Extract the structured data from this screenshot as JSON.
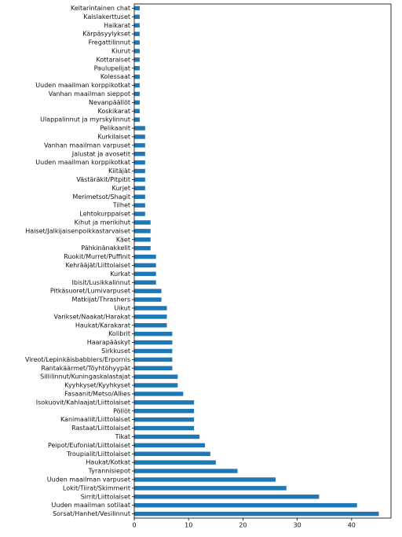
{
  "chart_data": {
    "type": "barh",
    "color": "#1f77b4",
    "categories": [
      "Keltarintainen chat",
      "Kaislakerttuset",
      "Haikarat",
      "Kärpäsyylykset",
      "Fregattilinnut",
      "Kiurut",
      "Kottaraiset",
      "Paulupelijat",
      "Kolessaat",
      "Uuden maailman korppikotkat",
      "Vanhan maailman sieppot",
      "Nevanpäällöt",
      "Koskikarat",
      "Ulappalinnut ja myrskylinnut",
      "Pelikaanit",
      "Kurkilaiset",
      "Vanhan maailman varpuset",
      "Jalustat ja avosetit",
      "Uuden maailman korppikotkat",
      "Kiitäjät",
      "Västäräkit/Pitpitit",
      "Kurjet",
      "Merimetsot/Shagit",
      "Tilhet",
      "Lehtokurppaiset",
      "Kihut ja merikihut",
      "Haiset/Jalkijaisenpoikkastarvaiset",
      "Käet",
      "Pähkinänakkelit",
      "Ruokit/Murret/Puffinit",
      "Kehrääjät/Liittolaiset",
      "Kurkat",
      "Ibisit/Lusikkalinnut",
      "Pitkäsuoret/Lumivarpuset",
      "Matkijat/Thrashers",
      "Uikut",
      "Varikset/Naakat/Harakat",
      "Haukat/Karakarat",
      "Kolibrit",
      "Haarapääskyt",
      "Sirkkuset",
      "Vireot/Lepinkäisbabblers/Erpornis",
      "Rantakäärmet/Töyhtöhyypät",
      "Sillilinnut/Kuningaskalastajat",
      "Kyyhkyset/Kyyhkyset",
      "Fasaanit/Metso/Allies",
      "Isokuovit/Kahlaajat/Liittolaiset",
      "Pöllöt",
      "Kanimaaliit/Liittolaiset",
      "Rastaat/Liittolaiset",
      "Tikat",
      "Peipot/Eufoniat/Liittolaiset",
      "Troupialit/Liittolaiset",
      "Haukat/Kotkat",
      "Tyrannisiepot",
      "Uuden maailman varpuset",
      "Lokit/Tiirat/Skimmerit",
      "Sirrit/Liittolaiset",
      "Uuden maailman sotilaat",
      "Sorsat/Hanhet/Vesilinnut"
    ],
    "values": [
      1,
      1,
      1,
      1,
      1,
      1,
      1,
      1,
      1,
      1,
      1,
      1,
      1,
      1,
      2,
      2,
      2,
      2,
      2,
      2,
      2,
      2,
      2,
      2,
      2,
      3,
      3,
      3,
      3,
      4,
      4,
      4,
      4,
      5,
      5,
      6,
      6,
      6,
      7,
      7,
      7,
      7,
      7,
      8,
      8,
      9,
      11,
      11,
      11,
      11,
      12,
      13,
      14,
      15,
      19,
      26,
      28,
      34,
      41,
      45
    ],
    "xlim": [
      0,
      47.25
    ],
    "xticks": [
      0,
      10,
      20,
      30,
      40
    ]
  }
}
